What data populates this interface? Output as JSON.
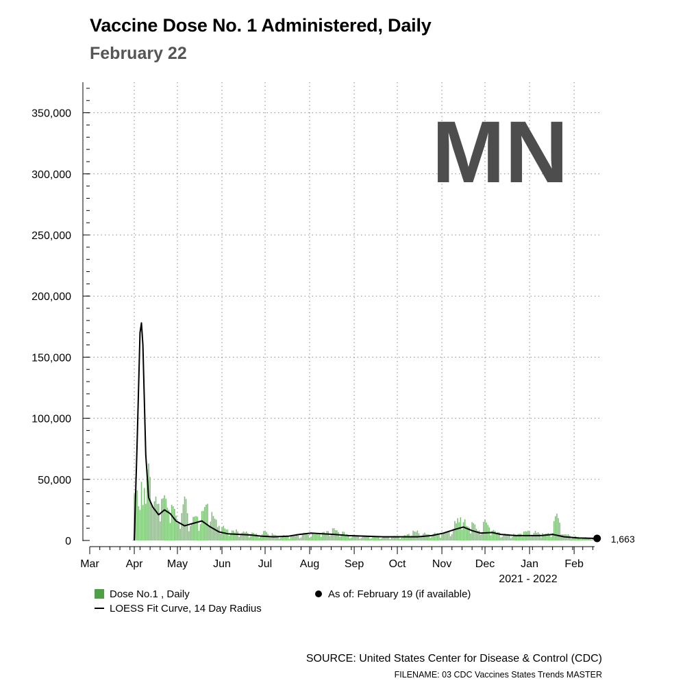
{
  "chart_data": {
    "type": "bar",
    "title": "Vaccine Dose No. 1 Administered, Daily",
    "subtitle": "February 22",
    "state_label": "MN",
    "xlabel": "2021 - 2022",
    "ylabel": "",
    "ylim": [
      0,
      375000
    ],
    "yticks": [
      0,
      50000,
      100000,
      150000,
      200000,
      250000,
      300000,
      350000
    ],
    "ytick_labels": [
      "0",
      "50,000",
      "100,000",
      "150,000",
      "200,000",
      "250,000",
      "300,000",
      "350,000"
    ],
    "x_range_days": [
      0,
      356
    ],
    "month_ticks": [
      {
        "label": "Mar",
        "day": 0
      },
      {
        "label": "Apr",
        "day": 31
      },
      {
        "label": "May",
        "day": 61
      },
      {
        "label": "Jun",
        "day": 92
      },
      {
        "label": "Jul",
        "day": 122
      },
      {
        "label": "Aug",
        "day": 153
      },
      {
        "label": "Sep",
        "day": 184
      },
      {
        "label": "Oct",
        "day": 214
      },
      {
        "label": "Nov",
        "day": 245
      },
      {
        "label": "Dec",
        "day": 275
      },
      {
        "label": "Jan",
        "day": 306
      },
      {
        "label": "Feb",
        "day": 337
      }
    ],
    "bar_anchors": [
      [
        30,
        500
      ],
      [
        31,
        38000
      ],
      [
        32,
        52000
      ],
      [
        33,
        41000
      ],
      [
        34,
        28000
      ],
      [
        35,
        25000
      ],
      [
        36,
        48000
      ],
      [
        37,
        29000
      ],
      [
        38,
        43000
      ],
      [
        39,
        30000
      ],
      [
        40,
        58000
      ],
      [
        41,
        63000
      ],
      [
        42,
        52000
      ],
      [
        43,
        30000
      ],
      [
        44,
        26000
      ],
      [
        46,
        36000
      ],
      [
        48,
        30000
      ],
      [
        50,
        34000
      ],
      [
        52,
        37000
      ],
      [
        55,
        25000
      ],
      [
        58,
        28000
      ],
      [
        62,
        15000
      ],
      [
        66,
        36000
      ],
      [
        70,
        12000
      ],
      [
        74,
        20000
      ],
      [
        78,
        24000
      ],
      [
        82,
        30000
      ],
      [
        86,
        20000
      ],
      [
        90,
        12000
      ],
      [
        95,
        9000
      ],
      [
        100,
        8000
      ],
      [
        110,
        6000
      ],
      [
        120,
        5000
      ],
      [
        122,
        8000
      ],
      [
        130,
        4000
      ],
      [
        140,
        3500
      ],
      [
        150,
        6000
      ],
      [
        160,
        5000
      ],
      [
        170,
        10000
      ],
      [
        180,
        4500
      ],
      [
        190,
        3500
      ],
      [
        200,
        3000
      ],
      [
        210,
        3000
      ],
      [
        220,
        4000
      ],
      [
        225,
        8000
      ],
      [
        235,
        5000
      ],
      [
        245,
        6000
      ],
      [
        250,
        7000
      ],
      [
        255,
        14000
      ],
      [
        258,
        19000
      ],
      [
        262,
        12000
      ],
      [
        266,
        15000
      ],
      [
        270,
        8000
      ],
      [
        275,
        17000
      ],
      [
        280,
        8000
      ],
      [
        290,
        5000
      ],
      [
        300,
        5500
      ],
      [
        305,
        8000
      ],
      [
        315,
        6000
      ],
      [
        320,
        5000
      ],
      [
        325,
        22000
      ],
      [
        330,
        5000
      ],
      [
        340,
        3000
      ],
      [
        350,
        1800
      ],
      [
        353,
        1663
      ]
    ],
    "series": [
      {
        "name": "Dose No.1 , Daily",
        "kind": "bar",
        "color": "#7cc275"
      },
      {
        "name": "LOESS Fit Curve, 14 Day Radius",
        "kind": "line",
        "color": "#000000",
        "points": [
          [
            31,
            0
          ],
          [
            33,
            80000
          ],
          [
            35,
            170000
          ],
          [
            36,
            178000
          ],
          [
            37,
            160000
          ],
          [
            39,
            70000
          ],
          [
            41,
            35000
          ],
          [
            44,
            27000
          ],
          [
            48,
            21000
          ],
          [
            52,
            25000
          ],
          [
            56,
            22000
          ],
          [
            60,
            16000
          ],
          [
            66,
            12000
          ],
          [
            72,
            14000
          ],
          [
            78,
            16000
          ],
          [
            84,
            11000
          ],
          [
            90,
            7000
          ],
          [
            96,
            5500
          ],
          [
            104,
            5000
          ],
          [
            112,
            4500
          ],
          [
            120,
            3500
          ],
          [
            128,
            3000
          ],
          [
            138,
            3500
          ],
          [
            146,
            5000
          ],
          [
            154,
            6000
          ],
          [
            162,
            5500
          ],
          [
            170,
            5000
          ],
          [
            180,
            4000
          ],
          [
            192,
            3500
          ],
          [
            204,
            3000
          ],
          [
            216,
            3000
          ],
          [
            228,
            3000
          ],
          [
            238,
            4000
          ],
          [
            246,
            6000
          ],
          [
            254,
            9000
          ],
          [
            260,
            11000
          ],
          [
            266,
            8000
          ],
          [
            272,
            6000
          ],
          [
            280,
            6500
          ],
          [
            286,
            5000
          ],
          [
            296,
            4000
          ],
          [
            306,
            4000
          ],
          [
            314,
            4000
          ],
          [
            322,
            5000
          ],
          [
            330,
            3000
          ],
          [
            340,
            2000
          ],
          [
            353,
            1663
          ]
        ]
      }
    ],
    "last_value": {
      "day": 353,
      "value": 1663,
      "label": "1,663"
    },
    "legend": [
      {
        "type": "swatch",
        "label": "Dose No.1 , Daily"
      },
      {
        "type": "line",
        "label": "LOESS Fit Curve, 14 Day Radius"
      },
      {
        "type": "dot",
        "label": "As of: February 19 (if available)"
      }
    ],
    "legend_placement": "bottom",
    "grid": true
  },
  "footer": {
    "source": "SOURCE: United States Center for Disease & Control (CDC)",
    "filename": "FILENAME: 03 CDC Vaccines States Trends MASTER"
  },
  "colors": {
    "bar": "#7cc275",
    "bar_legend": "#4f9f45",
    "state_label": "#4d4d4d",
    "subtitle": "#555555"
  }
}
